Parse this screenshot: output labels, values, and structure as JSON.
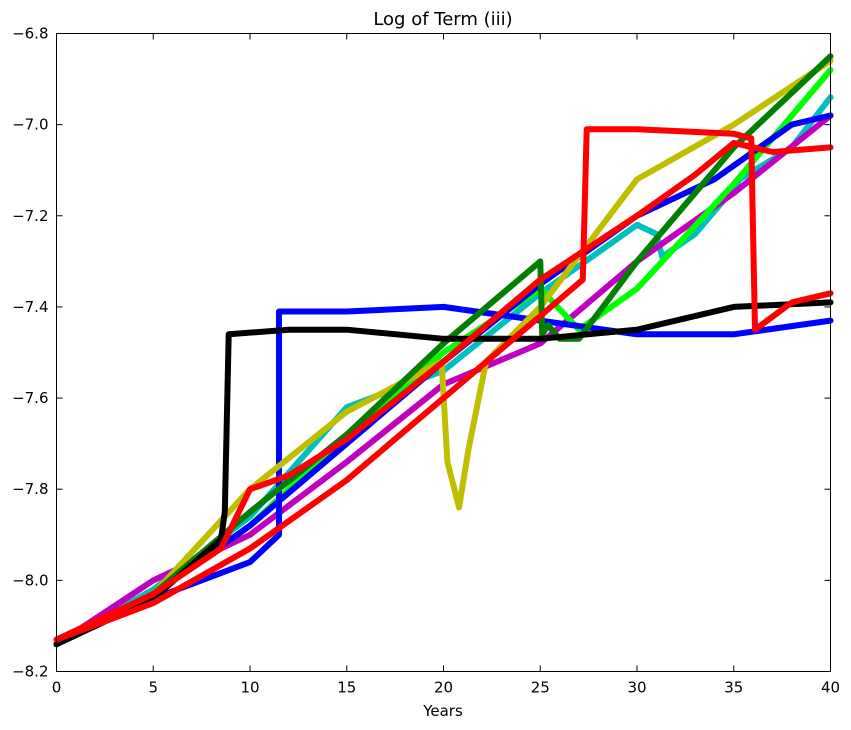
{
  "chart_data": {
    "type": "line",
    "title": "Log of Term (iii)",
    "xlabel": "Years",
    "ylabel": "",
    "xlim": [
      0,
      40
    ],
    "ylim": [
      -8.2,
      -6.8
    ],
    "xticks": [
      0,
      5,
      10,
      15,
      20,
      25,
      30,
      35,
      40
    ],
    "yticks": [
      -8.2,
      -8.0,
      -7.8,
      -7.6,
      -7.4,
      -7.2,
      -7.0,
      -6.8
    ],
    "grid": false,
    "legend": "none",
    "series": [
      {
        "color": "#00bfbf",
        "x": [
          0,
          5,
          10,
          15,
          20,
          25,
          30,
          31,
          31.3,
          33,
          35,
          35.3,
          38,
          40
        ],
        "y": [
          -8.14,
          -8.02,
          -7.86,
          -7.62,
          -7.54,
          -7.37,
          -7.22,
          -7.24,
          -7.29,
          -7.24,
          -7.14,
          -7.12,
          -7.05,
          -6.94
        ]
      },
      {
        "color": "#bf00bf",
        "x": [
          0,
          5,
          10,
          15,
          20,
          25,
          30,
          35,
          40
        ],
        "y": [
          -8.14,
          -8.0,
          -7.9,
          -7.74,
          -7.57,
          -7.48,
          -7.3,
          -7.15,
          -6.98
        ]
      },
      {
        "color": "#00ff00",
        "x": [
          0,
          5,
          10,
          15,
          20,
          25,
          27,
          30,
          35,
          40
        ],
        "y": [
          -8.14,
          -8.03,
          -7.88,
          -7.68,
          -7.5,
          -7.36,
          -7.45,
          -7.36,
          -7.13,
          -6.88
        ]
      },
      {
        "color": "#0000ff",
        "x": [
          0,
          5,
          10,
          11.5,
          11.5,
          15,
          20,
          25,
          30,
          35,
          40
        ],
        "y": [
          -8.14,
          -8.04,
          -7.96,
          -7.9,
          -7.41,
          -7.41,
          -7.4,
          -7.43,
          -7.46,
          -7.46,
          -7.43
        ]
      },
      {
        "color": "#0000ff",
        "x": [
          0,
          5,
          10,
          15,
          20,
          25,
          30,
          34,
          38,
          40
        ],
        "y": [
          -8.14,
          -8.03,
          -7.88,
          -7.7,
          -7.52,
          -7.35,
          -7.2,
          -7.12,
          -7.0,
          -6.98
        ]
      },
      {
        "color": "#bfbf00",
        "x": [
          0,
          5,
          10,
          15,
          19.9,
          20.2,
          20.8,
          21.3,
          22.2,
          25,
          30,
          35,
          40
        ],
        "y": [
          -8.14,
          -8.03,
          -7.8,
          -7.63,
          -7.52,
          -7.74,
          -7.84,
          -7.71,
          -7.52,
          -7.4,
          -7.12,
          -7.0,
          -6.86
        ]
      },
      {
        "color": "#007f00",
        "x": [
          0,
          5,
          10,
          15,
          20,
          25,
          25.1,
          25.4,
          26,
          27,
          30,
          35,
          40
        ],
        "y": [
          -8.14,
          -8.03,
          -7.85,
          -7.68,
          -7.48,
          -7.3,
          -7.46,
          -7.44,
          -7.47,
          -7.47,
          -7.3,
          -7.05,
          -6.85
        ]
      },
      {
        "color": "#000000",
        "x": [
          0,
          5,
          8.5,
          8.7,
          8.9,
          12,
          15,
          20,
          25,
          30,
          35,
          40
        ],
        "y": [
          -8.14,
          -8.04,
          -7.91,
          -7.85,
          -7.46,
          -7.45,
          -7.45,
          -7.47,
          -7.47,
          -7.45,
          -7.4,
          -7.39
        ]
      },
      {
        "color": "#ff0000",
        "x": [
          0,
          5,
          10,
          15,
          20,
          25,
          27.2,
          27.4,
          30,
          35,
          35.9,
          36.1,
          38,
          40
        ],
        "y": [
          -8.13,
          -8.05,
          -7.93,
          -7.78,
          -7.6,
          -7.42,
          -7.34,
          -7.01,
          -7.01,
          -7.02,
          -7.03,
          -7.45,
          -7.39,
          -7.37
        ]
      },
      {
        "color": "#ff0000",
        "x": [
          0,
          5,
          8.5,
          10,
          12,
          15,
          20,
          25,
          30,
          33,
          35,
          37,
          40
        ],
        "y": [
          -8.13,
          -8.03,
          -7.93,
          -7.8,
          -7.77,
          -7.69,
          -7.52,
          -7.34,
          -7.2,
          -7.11,
          -7.04,
          -7.06,
          -7.05
        ]
      }
    ]
  }
}
